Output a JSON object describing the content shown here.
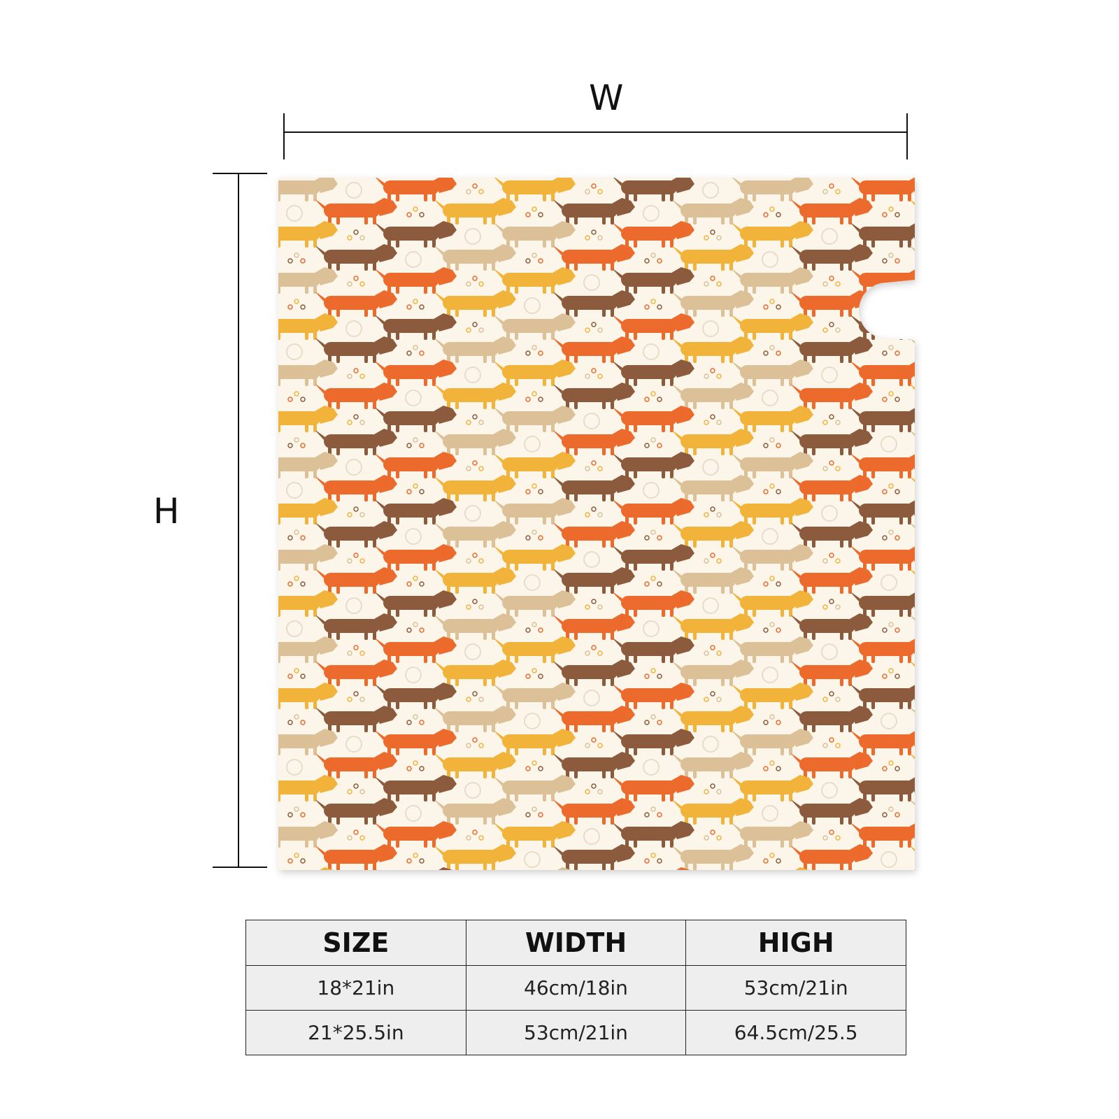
{
  "dimensions": {
    "width_label": "W",
    "height_label": "H"
  },
  "product": {
    "pattern": "dachshund dogs on cream background",
    "colors": {
      "background": "#fbf6e9",
      "orange": "#ec6a2c",
      "brown": "#8c5a3c",
      "tan": "#dcc198",
      "yellow": "#f2b33a"
    }
  },
  "size_table": {
    "headers": [
      "SIZE",
      "WIDTH",
      "HIGH"
    ],
    "rows": [
      [
        "18*21in",
        "46cm/18in",
        "53cm/21in"
      ],
      [
        "21*25.5in",
        "53cm/21in",
        "64.5cm/25.5"
      ]
    ]
  }
}
